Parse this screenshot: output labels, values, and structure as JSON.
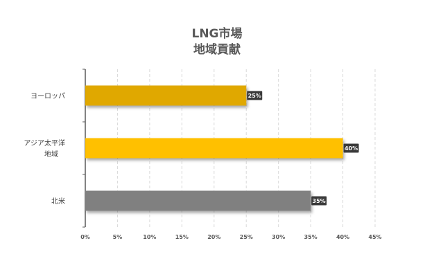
{
  "chart_data": {
    "type": "bar",
    "orientation": "horizontal",
    "title": [
      "LNG市場",
      "地域貢献"
    ],
    "categories": [
      "ヨーロッパ",
      "アジア太平洋地域",
      "北米"
    ],
    "category_label_lines": [
      [
        "ヨーロッパ"
      ],
      [
        "アジア太平洋",
        "地域"
      ],
      [
        "北米"
      ]
    ],
    "values": [
      25,
      40,
      35
    ],
    "value_labels": [
      "25%",
      "40%",
      "35%"
    ],
    "colors": [
      "#E0A800",
      "#FFC000",
      "#808080"
    ],
    "xlim": [
      0,
      45
    ],
    "xticks": [
      0,
      5,
      10,
      15,
      20,
      25,
      30,
      35,
      40,
      45
    ],
    "xtick_labels": [
      "0%",
      "5%",
      "10%",
      "15%",
      "20%",
      "25%",
      "30%",
      "35%",
      "40%",
      "45%"
    ],
    "grid": "vertical-dashed",
    "legend": "none"
  }
}
